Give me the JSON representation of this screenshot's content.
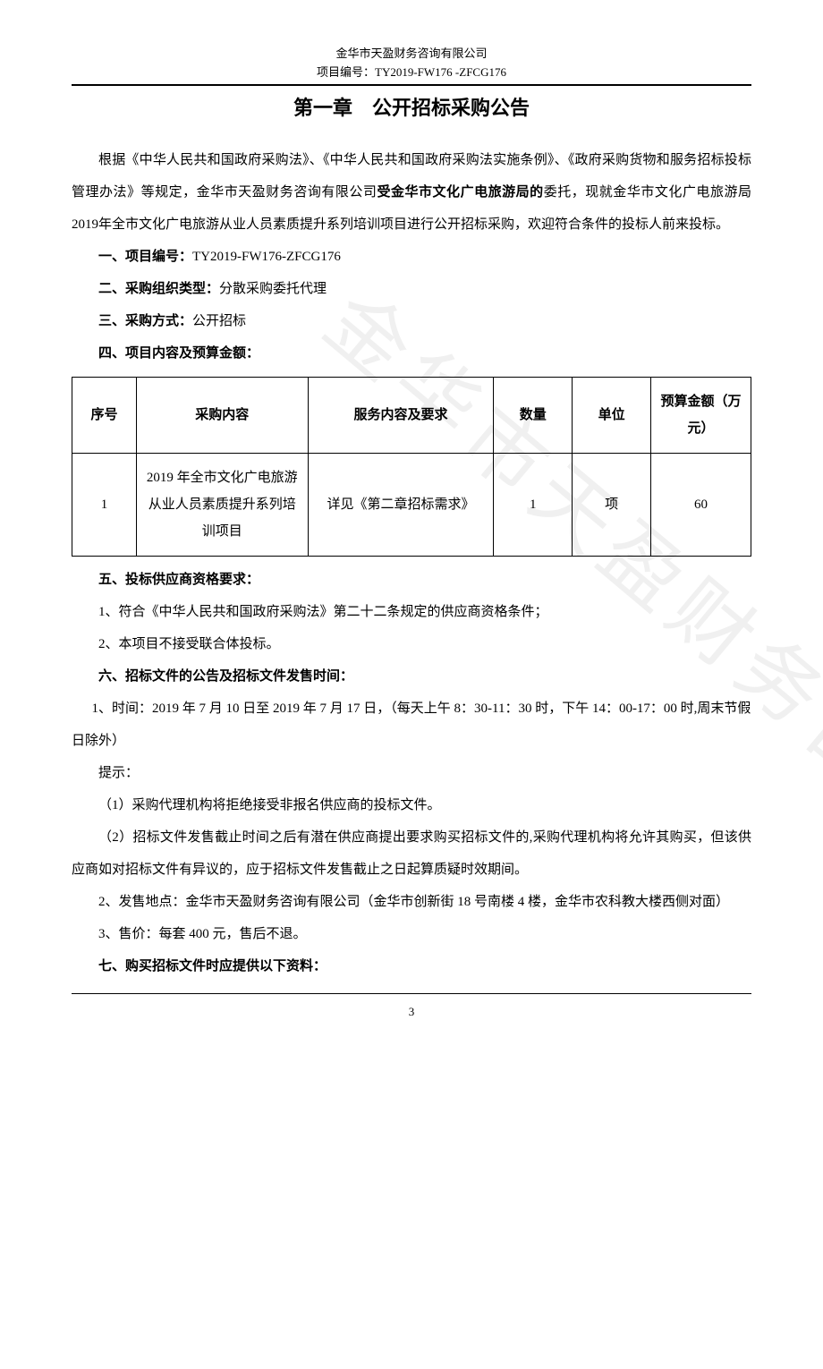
{
  "header": {
    "company": "金华市天盈财务咨询有限公司",
    "project_code_line": "项目编号：TY2019-FW176 -ZFCG176"
  },
  "title": "第一章　公开招标采购公告",
  "intro_para": "根据《中华人民共和国政府采购法》、《中华人民共和国政府采购法实施条例》、《政府采购货物和服务招标投标管理办法》等规定，金华市天盈财务咨询有限公司",
  "intro_bold": "受金华市文化广电旅游局的",
  "intro_rest": "委托，现就金华市文化广电旅游局2019年全市文化广电旅游从业人员素质提升系列培训项目进行公开招标采购，欢迎符合条件的投标人前来投标。",
  "section1_label": "一、项目编号：",
  "section1_value": "TY2019-FW176-ZFCG176",
  "section2_label": "二、采购组织类型：",
  "section2_value": "分散采购委托代理",
  "section3_label": "三、采购方式：",
  "section3_value": "公开招标",
  "section4_label": "四、项目内容及预算金额：",
  "table": {
    "headers": {
      "seq": "序号",
      "content": "采购内容",
      "service": "服务内容及要求",
      "qty": "数量",
      "unit": "单位",
      "budget": "预算金额（万元）"
    },
    "row1": {
      "seq": "1",
      "content": "2019 年全市文化广电旅游从业人员素质提升系列培训项目",
      "service": "详见《第二章招标需求》",
      "qty": "1",
      "unit": "项",
      "budget": "60"
    }
  },
  "section5_label": "五、投标供应商资格要求：",
  "section5_item1": "1、符合《中华人民共和国政府采购法》第二十二条规定的供应商资格条件；",
  "section5_item2": "2、本项目不接受联合体投标。",
  "section6_label": "六、招标文件的公告及招标文件发售时间：",
  "section6_item1": "1、时间：2019 年 7 月 10 日至 2019 年 7 月 17 日，（每天上午 8：30-11：30 时，下午 14：00-17：00 时,周末节假日除外）",
  "section6_tip_label": "提示：",
  "section6_tip1": "（1）采购代理机构将拒绝接受非报名供应商的投标文件。",
  "section6_tip2": "（2）招标文件发售截止时间之后有潜在供应商提出要求购买招标文件的,采购代理机构将允许其购买，但该供应商如对招标文件有异议的，应于招标文件发售截止之日起算质疑时效期间。",
  "section6_item2": "2、发售地点：金华市天盈财务咨询有限公司（金华市创新街 18 号南楼 4 楼，金华市农科教大楼西侧对面）",
  "section6_item3": "3、售价：每套 400 元，售后不退。",
  "section7_label": "七、购买招标文件时应提供以下资料：",
  "page_number": "3",
  "watermark_text": "金华市天盈财务咨询有限公司"
}
